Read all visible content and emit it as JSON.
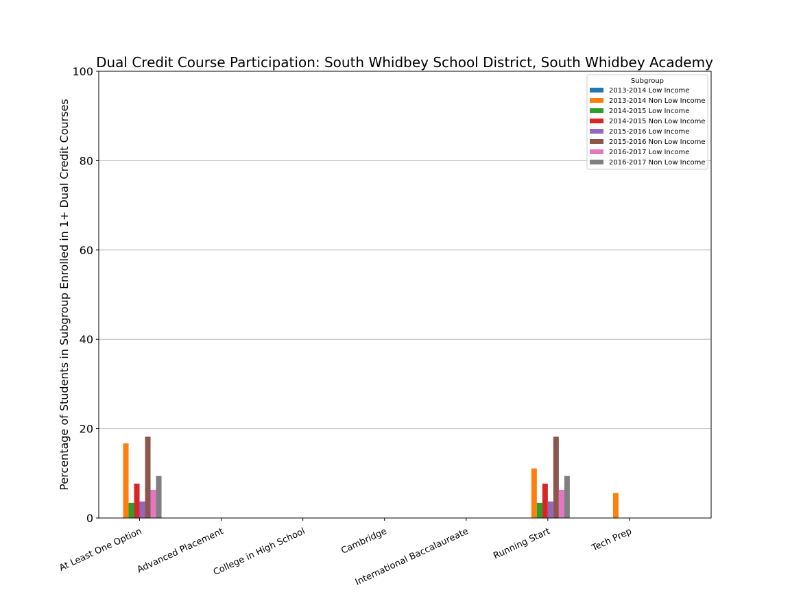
{
  "chart_data": {
    "type": "bar",
    "title": "Dual Credit Course Participation: South Whidbey School District, South Whidbey Academy",
    "xlabel": "",
    "ylabel": "Percentage of Students in Subgroup Enrolled in 1+ Dual Credit Courses",
    "ylim": [
      0,
      100
    ],
    "yticks": [
      0,
      20,
      40,
      60,
      80,
      100
    ],
    "grid": "horizontal",
    "legend_title": "Subgroup",
    "legend_position": "top-right",
    "categories": [
      "At Least One Option",
      "Advanced Placement",
      "College in High School",
      "Cambridge",
      "International Baccalaureate",
      "Running Start",
      "Tech Prep"
    ],
    "series": [
      {
        "name": "2013-2014 Low Income",
        "color": "#1f77b4",
        "values": [
          0,
          0,
          0,
          0,
          0,
          0,
          0
        ]
      },
      {
        "name": "2013-2014 Non Low Income",
        "color": "#ff7f0e",
        "values": [
          16.7,
          0,
          0,
          0,
          0,
          11.1,
          5.6
        ]
      },
      {
        "name": "2014-2015 Low Income",
        "color": "#2ca02c",
        "values": [
          3.4,
          0,
          0,
          0,
          0,
          3.4,
          0
        ]
      },
      {
        "name": "2014-2015 Non Low Income",
        "color": "#d62728",
        "values": [
          7.7,
          0,
          0,
          0,
          0,
          7.7,
          0
        ]
      },
      {
        "name": "2015-2016 Low Income",
        "color": "#9467bd",
        "values": [
          3.7,
          0,
          0,
          0,
          0,
          3.7,
          0
        ]
      },
      {
        "name": "2015-2016 Non Low Income",
        "color": "#8c564b",
        "values": [
          18.2,
          0,
          0,
          0,
          0,
          18.2,
          0
        ]
      },
      {
        "name": "2016-2017 Low Income",
        "color": "#e377c2",
        "values": [
          6.3,
          0,
          0,
          0,
          0,
          6.3,
          0
        ]
      },
      {
        "name": "2016-2017 Non Low Income",
        "color": "#7f7f7f",
        "values": [
          9.4,
          0,
          0,
          0,
          0,
          9.4,
          0
        ]
      }
    ]
  }
}
